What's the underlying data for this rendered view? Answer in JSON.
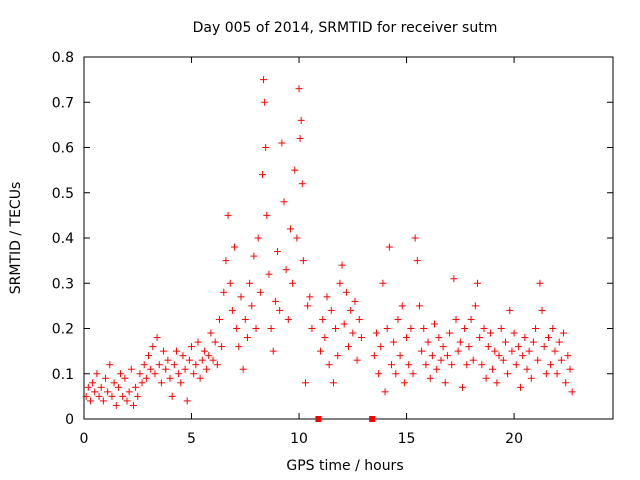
{
  "chart_data": {
    "type": "scatter",
    "title": "Day 005 of 2014, SRMTID for receiver sutm",
    "xlabel": "GPS time / hours",
    "ylabel": "SRMTID / TECUs",
    "xlim": [
      0,
      24.6
    ],
    "ylim": [
      0,
      0.8
    ],
    "x_ticks": [
      0,
      5,
      10,
      15,
      20
    ],
    "x_tick_labels": [
      "0",
      "5",
      "10",
      "15",
      "20"
    ],
    "y_ticks": [
      0,
      0.1,
      0.2,
      0.3,
      0.4,
      0.5,
      0.6,
      0.7,
      0.8
    ],
    "y_tick_labels": [
      "0",
      "0.1",
      "0.2",
      "0.3",
      "0.4",
      "0.5",
      "0.6",
      "0.7",
      "0.8"
    ],
    "grid": false,
    "marker": "plus",
    "series_color": "#ff0000",
    "series": [
      {
        "name": "SRMTID",
        "data": [
          [
            0.1,
            0.05
          ],
          [
            0.2,
            0.07
          ],
          [
            0.3,
            0.04
          ],
          [
            0.4,
            0.08
          ],
          [
            0.5,
            0.06
          ],
          [
            0.6,
            0.1
          ],
          [
            0.7,
            0.05
          ],
          [
            0.8,
            0.07
          ],
          [
            0.9,
            0.04
          ],
          [
            1.0,
            0.09
          ],
          [
            1.1,
            0.06
          ],
          [
            1.2,
            0.12
          ],
          [
            1.3,
            0.05
          ],
          [
            1.4,
            0.08
          ],
          [
            1.5,
            0.03
          ],
          [
            1.6,
            0.07
          ],
          [
            1.7,
            0.1
          ],
          [
            1.8,
            0.05
          ],
          [
            1.9,
            0.09
          ],
          [
            2.0,
            0.04
          ],
          [
            2.1,
            0.06
          ],
          [
            2.2,
            0.11
          ],
          [
            2.3,
            0.03
          ],
          [
            2.4,
            0.07
          ],
          [
            2.5,
            0.05
          ],
          [
            2.6,
            0.1
          ],
          [
            2.7,
            0.08
          ],
          [
            2.8,
            0.12
          ],
          [
            2.9,
            0.09
          ],
          [
            3.0,
            0.14
          ],
          [
            3.1,
            0.11
          ],
          [
            3.2,
            0.16
          ],
          [
            3.3,
            0.1
          ],
          [
            3.4,
            0.18
          ],
          [
            3.5,
            0.12
          ],
          [
            3.6,
            0.08
          ],
          [
            3.7,
            0.15
          ],
          [
            3.8,
            0.11
          ],
          [
            3.9,
            0.13
          ],
          [
            4.0,
            0.09
          ],
          [
            4.1,
            0.05
          ],
          [
            4.2,
            0.12
          ],
          [
            4.3,
            0.15
          ],
          [
            4.4,
            0.1
          ],
          [
            4.5,
            0.08
          ],
          [
            4.6,
            0.14
          ],
          [
            4.7,
            0.11
          ],
          [
            4.8,
            0.04
          ],
          [
            4.9,
            0.13
          ],
          [
            5.0,
            0.16
          ],
          [
            5.1,
            0.1
          ],
          [
            5.2,
            0.12
          ],
          [
            5.3,
            0.17
          ],
          [
            5.4,
            0.09
          ],
          [
            5.5,
            0.13
          ],
          [
            5.6,
            0.15
          ],
          [
            5.7,
            0.11
          ],
          [
            5.8,
            0.14
          ],
          [
            5.9,
            0.19
          ],
          [
            6.0,
            0.13
          ],
          [
            6.1,
            0.17
          ],
          [
            6.2,
            0.12
          ],
          [
            6.3,
            0.22
          ],
          [
            6.4,
            0.16
          ],
          [
            6.5,
            0.28
          ],
          [
            6.6,
            0.35
          ],
          [
            6.7,
            0.45
          ],
          [
            6.8,
            0.3
          ],
          [
            6.9,
            0.24
          ],
          [
            7.0,
            0.38
          ],
          [
            7.1,
            0.2
          ],
          [
            7.2,
            0.16
          ],
          [
            7.3,
            0.27
          ],
          [
            7.4,
            0.11
          ],
          [
            7.5,
            0.22
          ],
          [
            7.6,
            0.18
          ],
          [
            7.7,
            0.3
          ],
          [
            7.8,
            0.25
          ],
          [
            7.9,
            0.36
          ],
          [
            8.0,
            0.2
          ],
          [
            8.1,
            0.4
          ],
          [
            8.2,
            0.28
          ],
          [
            8.3,
            0.54
          ],
          [
            8.35,
            0.75
          ],
          [
            8.4,
            0.7
          ],
          [
            8.45,
            0.6
          ],
          [
            8.5,
            0.45
          ],
          [
            8.6,
            0.32
          ],
          [
            8.7,
            0.2
          ],
          [
            8.8,
            0.15
          ],
          [
            8.9,
            0.26
          ],
          [
            9.0,
            0.37
          ],
          [
            9.1,
            0.24
          ],
          [
            9.2,
            0.61
          ],
          [
            9.3,
            0.48
          ],
          [
            9.4,
            0.33
          ],
          [
            9.5,
            0.22
          ],
          [
            9.6,
            0.42
          ],
          [
            9.7,
            0.3
          ],
          [
            9.8,
            0.55
          ],
          [
            9.9,
            0.4
          ],
          [
            10.0,
            0.73
          ],
          [
            10.05,
            0.62
          ],
          [
            10.1,
            0.66
          ],
          [
            10.15,
            0.52
          ],
          [
            10.2,
            0.35
          ],
          [
            10.3,
            0.08
          ],
          [
            10.4,
            0.25
          ],
          [
            10.5,
            0.27
          ],
          [
            10.6,
            0.2
          ],
          [
            11.0,
            0.15
          ],
          [
            11.1,
            0.22
          ],
          [
            11.2,
            0.18
          ],
          [
            11.3,
            0.27
          ],
          [
            11.4,
            0.12
          ],
          [
            11.5,
            0.24
          ],
          [
            11.6,
            0.08
          ],
          [
            11.7,
            0.2
          ],
          [
            11.8,
            0.14
          ],
          [
            11.9,
            0.3
          ],
          [
            12.0,
            0.34
          ],
          [
            12.1,
            0.21
          ],
          [
            12.2,
            0.28
          ],
          [
            12.3,
            0.16
          ],
          [
            12.4,
            0.24
          ],
          [
            12.5,
            0.19
          ],
          [
            12.6,
            0.26
          ],
          [
            12.7,
            0.13
          ],
          [
            12.8,
            0.22
          ],
          [
            12.9,
            0.18
          ],
          [
            13.5,
            0.14
          ],
          [
            13.6,
            0.19
          ],
          [
            13.7,
            0.1
          ],
          [
            13.8,
            0.16
          ],
          [
            13.9,
            0.3
          ],
          [
            14.0,
            0.06
          ],
          [
            14.1,
            0.2
          ],
          [
            14.2,
            0.38
          ],
          [
            14.3,
            0.12
          ],
          [
            14.4,
            0.17
          ],
          [
            14.5,
            0.1
          ],
          [
            14.6,
            0.22
          ],
          [
            14.7,
            0.14
          ],
          [
            14.8,
            0.25
          ],
          [
            14.9,
            0.08
          ],
          [
            15.0,
            0.18
          ],
          [
            15.1,
            0.12
          ],
          [
            15.2,
            0.2
          ],
          [
            15.3,
            0.1
          ],
          [
            15.4,
            0.4
          ],
          [
            15.5,
            0.35
          ],
          [
            15.6,
            0.25
          ],
          [
            15.7,
            0.15
          ],
          [
            15.8,
            0.2
          ],
          [
            15.9,
            0.12
          ],
          [
            16.0,
            0.17
          ],
          [
            16.1,
            0.09
          ],
          [
            16.2,
            0.14
          ],
          [
            16.3,
            0.21
          ],
          [
            16.4,
            0.11
          ],
          [
            16.5,
            0.18
          ],
          [
            16.6,
            0.13
          ],
          [
            16.7,
            0.16
          ],
          [
            16.8,
            0.08
          ],
          [
            16.9,
            0.14
          ],
          [
            17.0,
            0.19
          ],
          [
            17.1,
            0.12
          ],
          [
            17.2,
            0.31
          ],
          [
            17.3,
            0.22
          ],
          [
            17.4,
            0.15
          ],
          [
            17.5,
            0.17
          ],
          [
            17.6,
            0.07
          ],
          [
            17.7,
            0.2
          ],
          [
            17.8,
            0.12
          ],
          [
            17.9,
            0.16
          ],
          [
            18.0,
            0.22
          ],
          [
            18.1,
            0.13
          ],
          [
            18.2,
            0.25
          ],
          [
            18.3,
            0.3
          ],
          [
            18.4,
            0.18
          ],
          [
            18.5,
            0.12
          ],
          [
            18.6,
            0.2
          ],
          [
            18.7,
            0.09
          ],
          [
            18.8,
            0.16
          ],
          [
            18.9,
            0.19
          ],
          [
            19.0,
            0.11
          ],
          [
            19.1,
            0.15
          ],
          [
            19.2,
            0.08
          ],
          [
            19.3,
            0.14
          ],
          [
            19.4,
            0.2
          ],
          [
            19.5,
            0.13
          ],
          [
            19.6,
            0.17
          ],
          [
            19.7,
            0.1
          ],
          [
            19.8,
            0.24
          ],
          [
            19.9,
            0.15
          ],
          [
            20.0,
            0.19
          ],
          [
            20.1,
            0.12
          ],
          [
            20.2,
            0.16
          ],
          [
            20.3,
            0.07
          ],
          [
            20.4,
            0.14
          ],
          [
            20.5,
            0.18
          ],
          [
            20.6,
            0.11
          ],
          [
            20.7,
            0.15
          ],
          [
            20.8,
            0.09
          ],
          [
            20.9,
            0.17
          ],
          [
            21.0,
            0.2
          ],
          [
            21.1,
            0.13
          ],
          [
            21.2,
            0.3
          ],
          [
            21.3,
            0.24
          ],
          [
            21.4,
            0.16
          ],
          [
            21.5,
            0.1
          ],
          [
            21.6,
            0.18
          ],
          [
            21.7,
            0.12
          ],
          [
            21.8,
            0.2
          ],
          [
            21.9,
            0.15
          ],
          [
            22.0,
            0.1
          ],
          [
            22.1,
            0.17
          ],
          [
            22.2,
            0.13
          ],
          [
            22.3,
            0.19
          ],
          [
            22.4,
            0.08
          ],
          [
            22.5,
            0.14
          ],
          [
            22.6,
            0.11
          ],
          [
            22.7,
            0.06
          ]
        ]
      }
    ],
    "gap_markers": [
      [
        10.9,
        0.0
      ],
      [
        13.4,
        0.0
      ]
    ]
  }
}
